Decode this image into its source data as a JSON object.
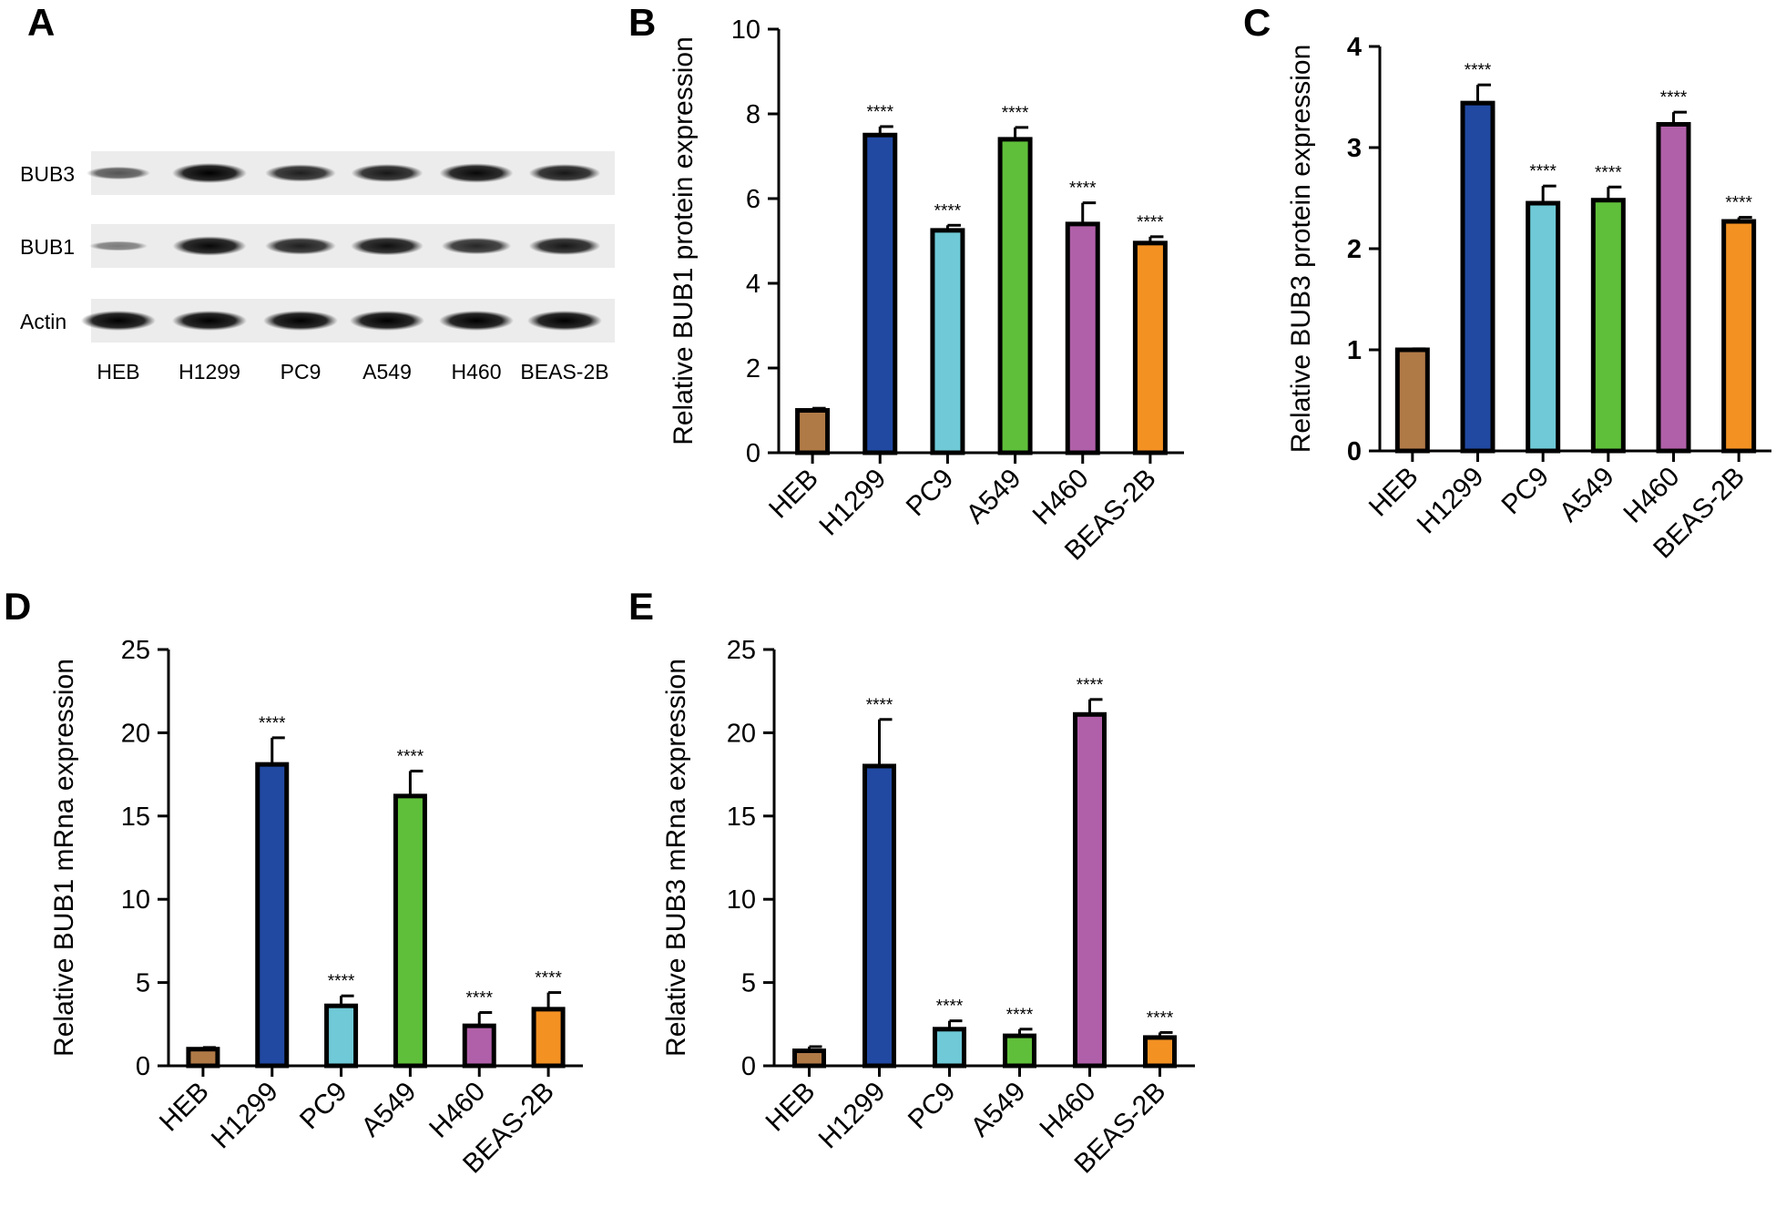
{
  "panels": {
    "A": "A",
    "B": "B",
    "C": "C",
    "D": "D",
    "E": "E"
  },
  "blot": {
    "rows": [
      "BUB3",
      "BUB1",
      "Actin"
    ],
    "lanes": [
      "HEB",
      "H1299",
      "PC9",
      "A549",
      "H460",
      "BEAS-2B"
    ],
    "band_intensity": {
      "BUB3": [
        0.45,
        1.0,
        0.8,
        0.85,
        0.95,
        0.85
      ],
      "BUB1": [
        0.2,
        0.95,
        0.8,
        0.9,
        0.75,
        0.85
      ],
      "Actin": [
        1.0,
        1.0,
        1.0,
        1.0,
        1.0,
        1.0
      ]
    }
  },
  "colors": {
    "HEB": "#b07a47",
    "H1299": "#2149a1",
    "PC9": "#6fc9d6",
    "A549": "#5fbf3a",
    "H460": "#b060a8",
    "BEAS-2B": "#f39123"
  },
  "chart_data": [
    {
      "id": "B",
      "type": "bar",
      "categories": [
        "HEB",
        "H1299",
        "PC9",
        "A549",
        "H460",
        "BEAS-2B"
      ],
      "values": [
        1.0,
        7.5,
        5.25,
        7.4,
        5.4,
        4.95
      ],
      "errors": [
        0.05,
        0.2,
        0.12,
        0.28,
        0.5,
        0.15
      ],
      "annotations": [
        "",
        "****",
        "****",
        "****",
        "****",
        "****"
      ],
      "ylabel": "Relative  BUB1 protein expression",
      "ylim": [
        0,
        10
      ],
      "yticks": [
        0,
        2,
        4,
        6,
        8,
        10
      ]
    },
    {
      "id": "C",
      "type": "bar",
      "categories": [
        "HEB",
        "H1299",
        "PC9",
        "A549",
        "H460",
        "BEAS-2B"
      ],
      "values": [
        1.0,
        3.44,
        2.45,
        2.48,
        3.23,
        2.27
      ],
      "errors": [
        0.01,
        0.18,
        0.17,
        0.13,
        0.12,
        0.04
      ],
      "annotations": [
        "",
        "****",
        "****",
        "****",
        "****",
        "****"
      ],
      "ylabel": "Relative BUB3 protein expression",
      "ylim": [
        0,
        4
      ],
      "yticks": [
        0,
        1,
        2,
        3,
        4
      ]
    },
    {
      "id": "D",
      "type": "bar",
      "categories": [
        "HEB",
        "H1299",
        "PC9",
        "A549",
        "H460",
        "BEAS-2B"
      ],
      "values": [
        1.0,
        18.1,
        3.6,
        16.2,
        2.4,
        3.4
      ],
      "errors": [
        0.1,
        1.6,
        0.6,
        1.5,
        0.8,
        1.0
      ],
      "annotations": [
        "",
        "****",
        "****",
        "****",
        "****",
        "****"
      ],
      "ylabel": "Relative BUB1 mRna expression",
      "ylim": [
        0,
        25
      ],
      "yticks": [
        0,
        5,
        10,
        15,
        20,
        25
      ]
    },
    {
      "id": "E",
      "type": "bar",
      "categories": [
        "HEB",
        "H1299",
        "PC9",
        "A549",
        "H460",
        "BEAS-2B"
      ],
      "values": [
        0.9,
        18.0,
        2.2,
        1.8,
        21.1,
        1.7
      ],
      "errors": [
        0.25,
        2.8,
        0.5,
        0.4,
        0.9,
        0.3
      ],
      "annotations": [
        "",
        "****",
        "****",
        "****",
        "****",
        "****"
      ],
      "ylabel": "Relative BUB3 mRna expression",
      "ylim": [
        0,
        25
      ],
      "yticks": [
        0,
        5,
        10,
        15,
        20,
        25
      ]
    }
  ]
}
